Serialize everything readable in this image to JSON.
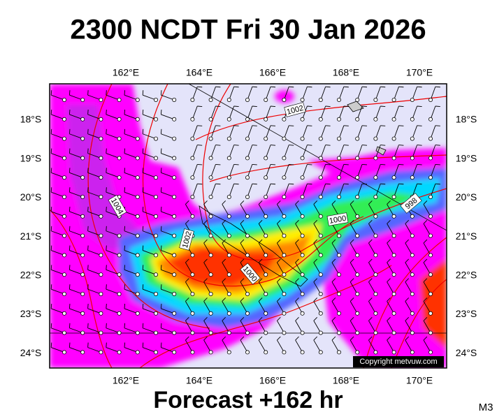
{
  "title": "2300 NCDT Fri 30 Jan 2026",
  "footer": "Forecast +162 hr",
  "model": "M3",
  "copyright": "Copyright metvuw.com",
  "longitudes": [
    "162°E",
    "164°E",
    "166°E",
    "168°E",
    "170°E"
  ],
  "latitudes": [
    "18°S",
    "19°S",
    "20°S",
    "21°S",
    "22°S",
    "23°S",
    "24°S"
  ],
  "isobar_labels": [
    "1002",
    "1004",
    "1002",
    "1000",
    "1000",
    "998"
  ]
}
